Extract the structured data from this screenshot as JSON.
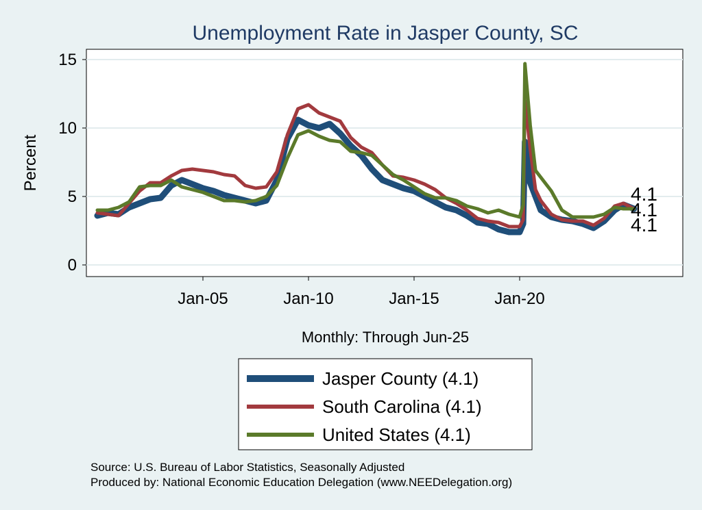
{
  "chart_data": {
    "type": "line",
    "title": "Unemployment Rate in Jasper  County, SC",
    "xlabel": "Monthly: Through Jun-25",
    "ylabel": "Percent",
    "x_range": [
      "Jan-00",
      "Jun-25"
    ],
    "ylim": [
      0,
      15.5
    ],
    "x_ticks": [
      "Jan-05",
      "Jan-10",
      "Jan-15",
      "Jan-20"
    ],
    "y_ticks": [
      0,
      5,
      10,
      15
    ],
    "grid": "horizontal",
    "legend_position": "bottom",
    "series": [
      {
        "name": "Jasper  County",
        "legend_label": "Jasper  County (4.1)",
        "color": "#1f4e79",
        "end_label": "4.1",
        "points": [
          [
            "2000-01",
            3.6
          ],
          [
            "2000-07",
            3.8
          ],
          [
            "2001-01",
            3.7
          ],
          [
            "2001-07",
            4.2
          ],
          [
            "2002-01",
            4.5
          ],
          [
            "2002-07",
            4.8
          ],
          [
            "2003-01",
            4.9
          ],
          [
            "2003-07",
            5.8
          ],
          [
            "2004-01",
            6.2
          ],
          [
            "2004-07",
            5.9
          ],
          [
            "2005-01",
            5.6
          ],
          [
            "2005-07",
            5.4
          ],
          [
            "2006-01",
            5.1
          ],
          [
            "2006-07",
            4.9
          ],
          [
            "2007-01",
            4.7
          ],
          [
            "2007-07",
            4.5
          ],
          [
            "2008-01",
            4.7
          ],
          [
            "2008-07",
            6.2
          ],
          [
            "2009-01",
            9.2
          ],
          [
            "2009-07",
            10.6
          ],
          [
            "2010-01",
            10.2
          ],
          [
            "2010-07",
            10.0
          ],
          [
            "2011-01",
            10.3
          ],
          [
            "2011-07",
            9.6
          ],
          [
            "2012-01",
            8.7
          ],
          [
            "2012-07",
            8.0
          ],
          [
            "2013-01",
            7.0
          ],
          [
            "2013-07",
            6.2
          ],
          [
            "2014-01",
            5.9
          ],
          [
            "2014-07",
            5.6
          ],
          [
            "2015-01",
            5.4
          ],
          [
            "2015-07",
            5.0
          ],
          [
            "2016-01",
            4.6
          ],
          [
            "2016-07",
            4.2
          ],
          [
            "2017-01",
            4.0
          ],
          [
            "2017-07",
            3.6
          ],
          [
            "2018-01",
            3.1
          ],
          [
            "2018-07",
            3.0
          ],
          [
            "2019-01",
            2.6
          ],
          [
            "2019-07",
            2.4
          ],
          [
            "2020-01",
            2.4
          ],
          [
            "2020-03",
            3.0
          ],
          [
            "2020-04",
            9.0
          ],
          [
            "2020-07",
            6.0
          ],
          [
            "2020-10",
            5.0
          ],
          [
            "2021-01",
            4.0
          ],
          [
            "2021-07",
            3.5
          ],
          [
            "2022-01",
            3.3
          ],
          [
            "2022-07",
            3.2
          ],
          [
            "2023-01",
            3.0
          ],
          [
            "2023-07",
            2.7
          ],
          [
            "2024-01",
            3.2
          ],
          [
            "2024-07",
            4.0
          ],
          [
            "2024-12",
            4.4
          ],
          [
            "2025-06",
            4.1
          ]
        ]
      },
      {
        "name": "South Carolina",
        "legend_label": "South Carolina (4.1)",
        "color": "#a23a3e",
        "end_label": "4.1",
        "points": [
          [
            "2000-01",
            3.8
          ],
          [
            "2000-07",
            3.7
          ],
          [
            "2001-01",
            3.6
          ],
          [
            "2001-07",
            4.5
          ],
          [
            "2002-01",
            5.4
          ],
          [
            "2002-07",
            6.0
          ],
          [
            "2003-01",
            6.0
          ],
          [
            "2003-07",
            6.5
          ],
          [
            "2004-01",
            6.9
          ],
          [
            "2004-07",
            7.0
          ],
          [
            "2005-01",
            6.9
          ],
          [
            "2005-07",
            6.8
          ],
          [
            "2006-01",
            6.6
          ],
          [
            "2006-07",
            6.5
          ],
          [
            "2007-01",
            5.8
          ],
          [
            "2007-07",
            5.6
          ],
          [
            "2008-01",
            5.7
          ],
          [
            "2008-07",
            6.8
          ],
          [
            "2009-01",
            9.5
          ],
          [
            "2009-07",
            11.4
          ],
          [
            "2010-01",
            11.7
          ],
          [
            "2010-07",
            11.1
          ],
          [
            "2011-01",
            10.8
          ],
          [
            "2011-07",
            10.5
          ],
          [
            "2012-01",
            9.3
          ],
          [
            "2012-07",
            8.6
          ],
          [
            "2013-01",
            8.2
          ],
          [
            "2013-07",
            7.3
          ],
          [
            "2014-01",
            6.5
          ],
          [
            "2014-07",
            6.4
          ],
          [
            "2015-01",
            6.2
          ],
          [
            "2015-07",
            5.9
          ],
          [
            "2016-01",
            5.5
          ],
          [
            "2016-07",
            4.9
          ],
          [
            "2017-01",
            4.5
          ],
          [
            "2017-07",
            4.0
          ],
          [
            "2018-01",
            3.4
          ],
          [
            "2018-07",
            3.2
          ],
          [
            "2019-01",
            3.1
          ],
          [
            "2019-07",
            2.8
          ],
          [
            "2020-01",
            2.8
          ],
          [
            "2020-03",
            3.3
          ],
          [
            "2020-04",
            12.0
          ],
          [
            "2020-07",
            8.5
          ],
          [
            "2020-10",
            5.5
          ],
          [
            "2021-01",
            4.7
          ],
          [
            "2021-07",
            3.7
          ],
          [
            "2022-01",
            3.3
          ],
          [
            "2022-07",
            3.2
          ],
          [
            "2023-01",
            3.2
          ],
          [
            "2023-07",
            2.9
          ],
          [
            "2024-01",
            3.4
          ],
          [
            "2024-07",
            4.3
          ],
          [
            "2024-12",
            4.5
          ],
          [
            "2025-06",
            4.1
          ]
        ]
      },
      {
        "name": "United States",
        "legend_label": "United States (4.1)",
        "color": "#5b7a2a",
        "end_label": "4.1",
        "points": [
          [
            "2000-01",
            4.0
          ],
          [
            "2000-07",
            4.0
          ],
          [
            "2001-01",
            4.2
          ],
          [
            "2001-07",
            4.6
          ],
          [
            "2002-01",
            5.7
          ],
          [
            "2002-07",
            5.8
          ],
          [
            "2003-01",
            5.8
          ],
          [
            "2003-07",
            6.2
          ],
          [
            "2004-01",
            5.7
          ],
          [
            "2004-07",
            5.5
          ],
          [
            "2005-01",
            5.3
          ],
          [
            "2005-07",
            5.0
          ],
          [
            "2006-01",
            4.7
          ],
          [
            "2006-07",
            4.7
          ],
          [
            "2007-01",
            4.6
          ],
          [
            "2007-07",
            4.7
          ],
          [
            "2008-01",
            5.0
          ],
          [
            "2008-07",
            5.8
          ],
          [
            "2009-01",
            7.8
          ],
          [
            "2009-07",
            9.5
          ],
          [
            "2010-01",
            9.8
          ],
          [
            "2010-07",
            9.4
          ],
          [
            "2011-01",
            9.1
          ],
          [
            "2011-07",
            9.0
          ],
          [
            "2012-01",
            8.3
          ],
          [
            "2012-07",
            8.2
          ],
          [
            "2013-01",
            8.0
          ],
          [
            "2013-07",
            7.3
          ],
          [
            "2014-01",
            6.6
          ],
          [
            "2014-07",
            6.2
          ],
          [
            "2015-01",
            5.7
          ],
          [
            "2015-07",
            5.2
          ],
          [
            "2016-01",
            4.9
          ],
          [
            "2016-07",
            4.9
          ],
          [
            "2017-01",
            4.7
          ],
          [
            "2017-07",
            4.3
          ],
          [
            "2018-01",
            4.1
          ],
          [
            "2018-07",
            3.8
          ],
          [
            "2019-01",
            4.0
          ],
          [
            "2019-07",
            3.7
          ],
          [
            "2020-01",
            3.5
          ],
          [
            "2020-03",
            4.4
          ],
          [
            "2020-04",
            14.7
          ],
          [
            "2020-07",
            10.2
          ],
          [
            "2020-10",
            6.9
          ],
          [
            "2021-01",
            6.4
          ],
          [
            "2021-07",
            5.4
          ],
          [
            "2022-01",
            4.0
          ],
          [
            "2022-07",
            3.5
          ],
          [
            "2023-01",
            3.5
          ],
          [
            "2023-07",
            3.5
          ],
          [
            "2024-01",
            3.7
          ],
          [
            "2024-07",
            4.2
          ],
          [
            "2024-12",
            4.1
          ],
          [
            "2025-06",
            4.1
          ]
        ]
      }
    ]
  },
  "notes": {
    "source": "Source: U.S. Bureau of Labor Statistics, Seasonally Adjusted",
    "produced_by": "Produced by: National Economic Education Delegation (www.NEEDelegation.org)"
  },
  "colors": {
    "background": "#eaf2f3",
    "plot_background": "#ffffff",
    "title": "#1f3a64"
  }
}
